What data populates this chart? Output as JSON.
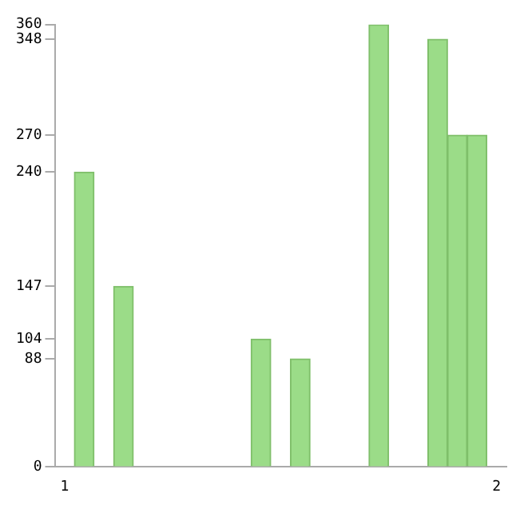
{
  "chart_data": {
    "type": "bar",
    "categories": [
      "1",
      null,
      null,
      null,
      null,
      null,
      null,
      null,
      null,
      null,
      null,
      null,
      null,
      null,
      null,
      null,
      null,
      null,
      null,
      null,
      null,
      null,
      "2"
    ],
    "values": [
      0,
      240,
      0,
      147,
      0,
      0,
      0,
      0,
      0,
      0,
      104,
      0,
      88,
      0,
      0,
      0,
      360,
      0,
      0,
      348,
      270,
      270,
      0
    ],
    "color": "#9bdc88",
    "ylim": [
      0,
      360
    ],
    "yticks": [
      0,
      88,
      104,
      147,
      240,
      270,
      348,
      360
    ],
    "grid": false
  }
}
